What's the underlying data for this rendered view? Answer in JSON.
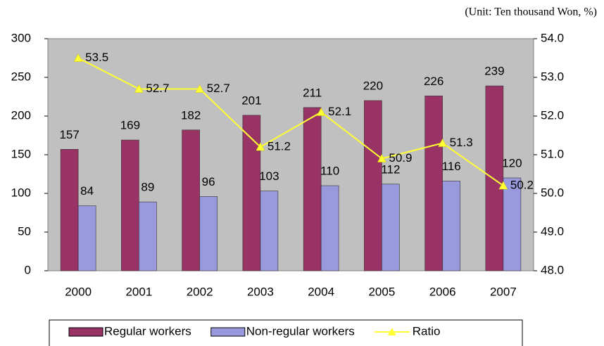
{
  "chart_data": {
    "type": "bar_line",
    "subtitle": "(Unit: Ten thousand Won, %)",
    "categories": [
      "2000",
      "2001",
      "2002",
      "2003",
      "2004",
      "2005",
      "2006",
      "2007"
    ],
    "series": [
      {
        "name": "Regular workers",
        "color": "#993366",
        "type": "bar",
        "values": [
          157,
          169,
          182,
          201,
          211,
          220,
          226,
          239
        ]
      },
      {
        "name": "Non-regular workers",
        "color": "#9999dd",
        "type": "bar",
        "values": [
          84,
          89,
          96,
          103,
          110,
          112,
          116,
          120
        ]
      },
      {
        "name": "Ratio",
        "color": "#ffff33",
        "type": "line",
        "axis": "y2",
        "values": [
          53.5,
          52.7,
          52.7,
          51.2,
          52.1,
          50.9,
          51.3,
          50.2
        ]
      }
    ],
    "ylim": [
      0,
      300
    ],
    "yticks": [
      0,
      50,
      100,
      150,
      200,
      250,
      300
    ],
    "y2lim": [
      48,
      54
    ],
    "y2ticks": [
      {
        "value": 48,
        "label": "48.0"
      },
      {
        "value": 49,
        "label": "49.0"
      },
      {
        "value": 50,
        "label": "50.0"
      },
      {
        "value": 51,
        "label": "51.0"
      },
      {
        "value": 52,
        "label": "52.0"
      },
      {
        "value": 53,
        "label": "53.0"
      },
      {
        "value": 54,
        "label": "54.0"
      }
    ],
    "grid": false,
    "legend": "bottom"
  }
}
